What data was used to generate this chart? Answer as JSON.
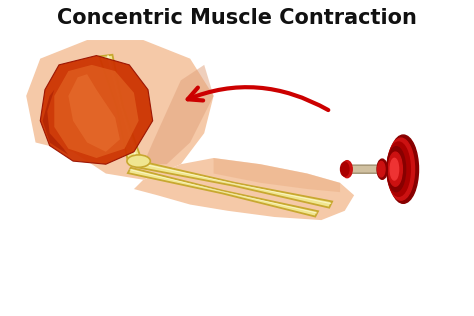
{
  "title": "Concentric Muscle Contraction",
  "title_fontsize": 15,
  "title_fontweight": "bold",
  "title_color": "#111111",
  "bg_color": "#ffffff",
  "skin_color": "#f5c9a8",
  "skin_dark": "#e8a87a",
  "skin_shadow": "#e0a07a",
  "bone_color": "#f0e690",
  "bone_light": "#fffde0",
  "bone_outline": "#c8a830",
  "muscle_main": "#cc3300",
  "muscle_light": "#dd4400",
  "muscle_orange": "#e06020",
  "muscle_dark": "#991100",
  "dumbbell_red": "#cc1111",
  "dumbbell_dark": "#880000",
  "dumbbell_mid": "#aa0000",
  "dumbbell_highlight": "#ee3333",
  "arrow_color": "#cc0000",
  "figsize": [
    4.74,
    3.16
  ],
  "dpi": 100
}
